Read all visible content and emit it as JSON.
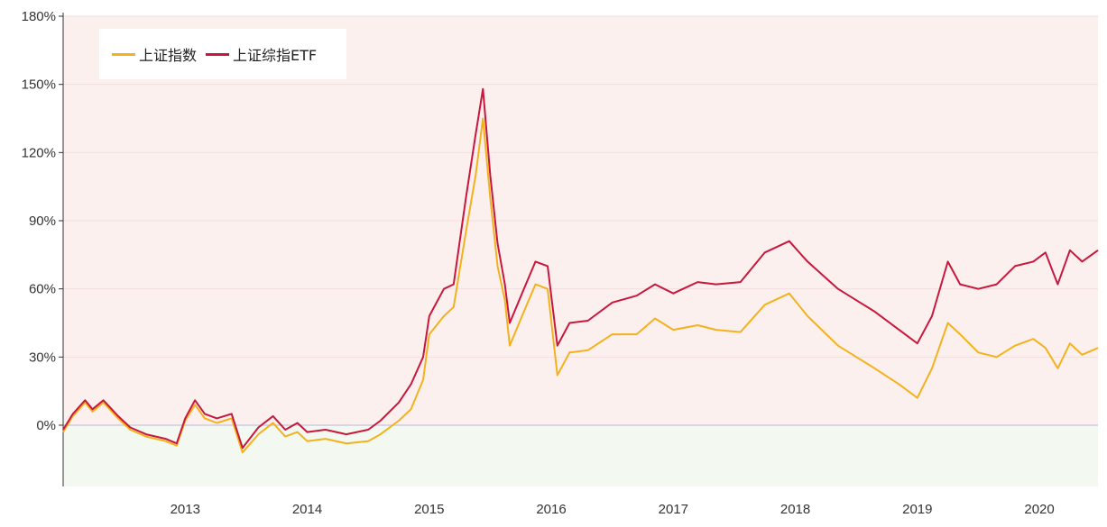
{
  "chart_data": {
    "type": "line",
    "yticks": [
      "180%",
      "150%",
      "120%",
      "90%",
      "60%",
      "30%",
      "0%"
    ],
    "ytick_values": [
      180,
      150,
      120,
      90,
      60,
      30,
      0
    ],
    "xticks": [
      "2013",
      "2014",
      "2015",
      "2016",
      "2017",
      "2018",
      "2019",
      "2020"
    ],
    "xtick_values": [
      2013,
      2014,
      2015,
      2016,
      2017,
      2018,
      2019,
      2020
    ],
    "xlim": [
      2012.0,
      2020.48
    ],
    "ylim": [
      -27,
      180
    ],
    "grid": "horizontal",
    "legend_position": "top-left",
    "background_colors": {
      "positive": "#fcf0ef",
      "negative": "#f3f9f0",
      "zero_line": "#c9cde0"
    },
    "series": [
      {
        "name": "上证指数",
        "color": "#f3b21c",
        "points": [
          [
            2012.0,
            -3
          ],
          [
            2012.08,
            4
          ],
          [
            2012.18,
            10
          ],
          [
            2012.24,
            6
          ],
          [
            2012.33,
            10
          ],
          [
            2012.45,
            3
          ],
          [
            2012.55,
            -2
          ],
          [
            2012.68,
            -5
          ],
          [
            2012.84,
            -7
          ],
          [
            2012.93,
            -9
          ],
          [
            2013.0,
            2
          ],
          [
            2013.08,
            9
          ],
          [
            2013.16,
            3
          ],
          [
            2013.26,
            1
          ],
          [
            2013.38,
            3
          ],
          [
            2013.47,
            -12
          ],
          [
            2013.6,
            -4
          ],
          [
            2013.72,
            1
          ],
          [
            2013.82,
            -5
          ],
          [
            2013.92,
            -3
          ],
          [
            2014.0,
            -7
          ],
          [
            2014.15,
            -6
          ],
          [
            2014.32,
            -8
          ],
          [
            2014.5,
            -7
          ],
          [
            2014.6,
            -4
          ],
          [
            2014.75,
            2
          ],
          [
            2014.85,
            7
          ],
          [
            2014.95,
            20
          ],
          [
            2015.0,
            40
          ],
          [
            2015.12,
            48
          ],
          [
            2015.2,
            52
          ],
          [
            2015.3,
            85
          ],
          [
            2015.38,
            110
          ],
          [
            2015.44,
            135
          ],
          [
            2015.5,
            100
          ],
          [
            2015.56,
            70
          ],
          [
            2015.62,
            55
          ],
          [
            2015.66,
            35
          ],
          [
            2015.76,
            48
          ],
          [
            2015.87,
            62
          ],
          [
            2015.97,
            60
          ],
          [
            2016.05,
            22
          ],
          [
            2016.15,
            32
          ],
          [
            2016.3,
            33
          ],
          [
            2016.5,
            40
          ],
          [
            2016.7,
            40
          ],
          [
            2016.85,
            47
          ],
          [
            2017.0,
            42
          ],
          [
            2017.2,
            44
          ],
          [
            2017.35,
            42
          ],
          [
            2017.55,
            41
          ],
          [
            2017.75,
            53
          ],
          [
            2017.95,
            58
          ],
          [
            2018.1,
            48
          ],
          [
            2018.35,
            35
          ],
          [
            2018.5,
            30
          ],
          [
            2018.65,
            25
          ],
          [
            2018.85,
            18
          ],
          [
            2019.0,
            12
          ],
          [
            2019.12,
            25
          ],
          [
            2019.25,
            45
          ],
          [
            2019.35,
            40
          ],
          [
            2019.5,
            32
          ],
          [
            2019.65,
            30
          ],
          [
            2019.8,
            35
          ],
          [
            2019.95,
            38
          ],
          [
            2020.05,
            34
          ],
          [
            2020.15,
            25
          ],
          [
            2020.25,
            36
          ],
          [
            2020.35,
            31
          ],
          [
            2020.48,
            34
          ]
        ]
      },
      {
        "name": "上证综指ETF",
        "color": "#c8173d",
        "points": [
          [
            2012.0,
            -2
          ],
          [
            2012.08,
            5
          ],
          [
            2012.18,
            11
          ],
          [
            2012.24,
            7
          ],
          [
            2012.33,
            11
          ],
          [
            2012.45,
            4
          ],
          [
            2012.55,
            -1
          ],
          [
            2012.68,
            -4
          ],
          [
            2012.84,
            -6
          ],
          [
            2012.93,
            -8
          ],
          [
            2013.0,
            3
          ],
          [
            2013.08,
            11
          ],
          [
            2013.16,
            5
          ],
          [
            2013.26,
            3
          ],
          [
            2013.38,
            5
          ],
          [
            2013.47,
            -10
          ],
          [
            2013.6,
            -1
          ],
          [
            2013.72,
            4
          ],
          [
            2013.82,
            -2
          ],
          [
            2013.92,
            1
          ],
          [
            2014.0,
            -3
          ],
          [
            2014.15,
            -2
          ],
          [
            2014.32,
            -4
          ],
          [
            2014.5,
            -2
          ],
          [
            2014.6,
            2
          ],
          [
            2014.75,
            10
          ],
          [
            2014.85,
            18
          ],
          [
            2014.95,
            30
          ],
          [
            2015.0,
            48
          ],
          [
            2015.12,
            60
          ],
          [
            2015.2,
            62
          ],
          [
            2015.3,
            100
          ],
          [
            2015.38,
            128
          ],
          [
            2015.44,
            148
          ],
          [
            2015.5,
            110
          ],
          [
            2015.56,
            80
          ],
          [
            2015.62,
            62
          ],
          [
            2015.66,
            45
          ],
          [
            2015.76,
            58
          ],
          [
            2015.87,
            72
          ],
          [
            2015.97,
            70
          ],
          [
            2016.05,
            35
          ],
          [
            2016.15,
            45
          ],
          [
            2016.3,
            46
          ],
          [
            2016.5,
            54
          ],
          [
            2016.7,
            57
          ],
          [
            2016.85,
            62
          ],
          [
            2017.0,
            58
          ],
          [
            2017.2,
            63
          ],
          [
            2017.35,
            62
          ],
          [
            2017.55,
            63
          ],
          [
            2017.75,
            76
          ],
          [
            2017.95,
            81
          ],
          [
            2018.1,
            72
          ],
          [
            2018.35,
            60
          ],
          [
            2018.5,
            55
          ],
          [
            2018.65,
            50
          ],
          [
            2018.85,
            42
          ],
          [
            2019.0,
            36
          ],
          [
            2019.12,
            48
          ],
          [
            2019.25,
            72
          ],
          [
            2019.35,
            62
          ],
          [
            2019.5,
            60
          ],
          [
            2019.65,
            62
          ],
          [
            2019.8,
            70
          ],
          [
            2019.95,
            72
          ],
          [
            2020.05,
            76
          ],
          [
            2020.15,
            62
          ],
          [
            2020.25,
            77
          ],
          [
            2020.35,
            72
          ],
          [
            2020.48,
            77
          ]
        ]
      }
    ]
  }
}
